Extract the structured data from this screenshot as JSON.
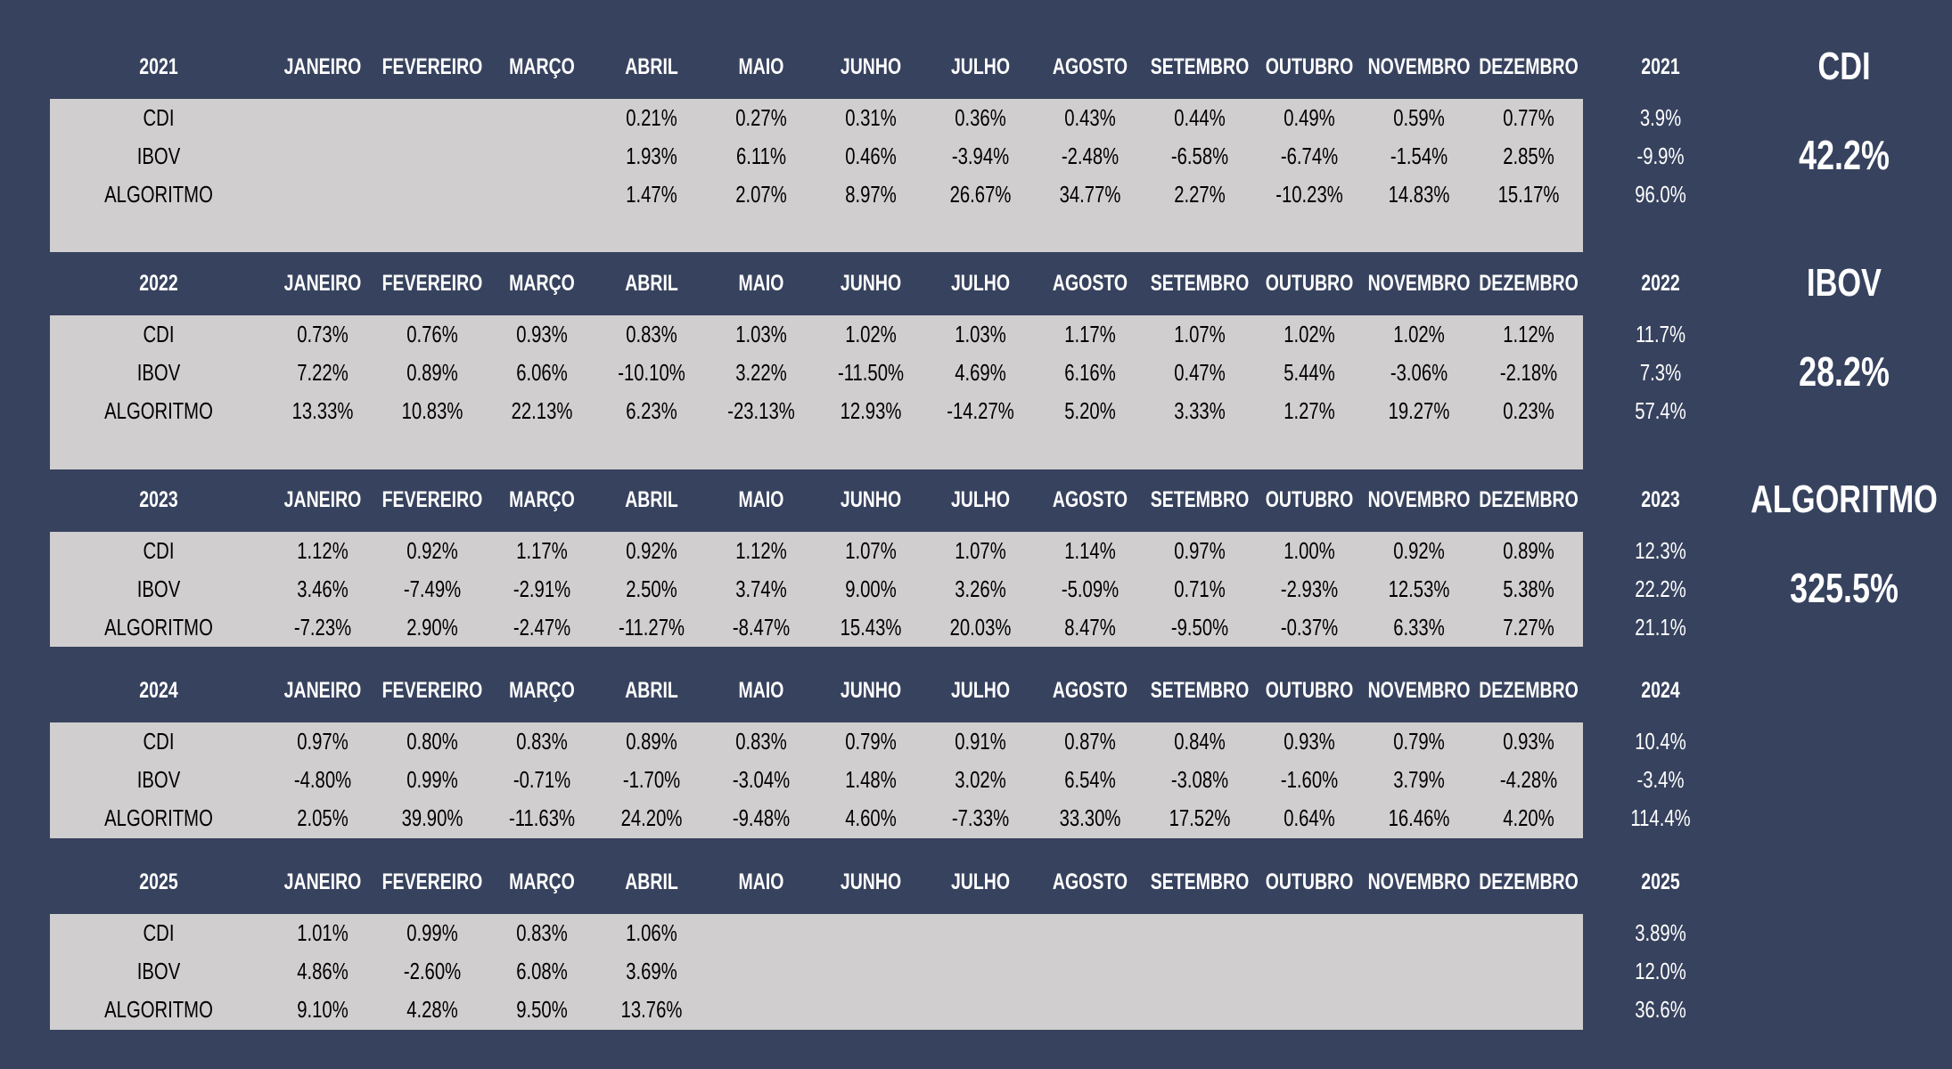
{
  "months": [
    "JANEIRO",
    "FEVEREIRO",
    "MARÇO",
    "ABRIL",
    "MAIO",
    "JUNHO",
    "JULHO",
    "AGOSTO",
    "SETEMBRO",
    "OUTUBRO",
    "NOVEMBRO",
    "DEZEMBRO"
  ],
  "row_labels": [
    "CDI",
    "IBOV",
    "ALGORITMO"
  ],
  "years": [
    {
      "year": "2021",
      "rows": [
        {
          "label": "CDI",
          "values": [
            "",
            "",
            "",
            "0.21%",
            "0.27%",
            "0.31%",
            "0.36%",
            "0.43%",
            "0.44%",
            "0.49%",
            "0.59%",
            "0.77%"
          ],
          "total": "3.9%"
        },
        {
          "label": "IBOV",
          "values": [
            "",
            "",
            "",
            "1.93%",
            "6.11%",
            "0.46%",
            "-3.94%",
            "-2.48%",
            "-6.58%",
            "-6.74%",
            "-1.54%",
            "2.85%"
          ],
          "total": "-9.9%"
        },
        {
          "label": "ALGORITMO",
          "values": [
            "",
            "",
            "",
            "1.47%",
            "2.07%",
            "8.97%",
            "26.67%",
            "34.77%",
            "2.27%",
            "-10.23%",
            "14.83%",
            "15.17%"
          ],
          "total": "96.0%"
        }
      ]
    },
    {
      "year": "2022",
      "rows": [
        {
          "label": "CDI",
          "values": [
            "0.73%",
            "0.76%",
            "0.93%",
            "0.83%",
            "1.03%",
            "1.02%",
            "1.03%",
            "1.17%",
            "1.07%",
            "1.02%",
            "1.02%",
            "1.12%"
          ],
          "total": "11.7%"
        },
        {
          "label": "IBOV",
          "values": [
            "7.22%",
            "0.89%",
            "6.06%",
            "-10.10%",
            "3.22%",
            "-11.50%",
            "4.69%",
            "6.16%",
            "0.47%",
            "5.44%",
            "-3.06%",
            "-2.18%"
          ],
          "total": "7.3%"
        },
        {
          "label": "ALGORITMO",
          "values": [
            "13.33%",
            "10.83%",
            "22.13%",
            "6.23%",
            "-23.13%",
            "12.93%",
            "-14.27%",
            "5.20%",
            "3.33%",
            "1.27%",
            "19.27%",
            "0.23%"
          ],
          "total": "57.4%"
        }
      ]
    },
    {
      "year": "2023",
      "rows": [
        {
          "label": "CDI",
          "values": [
            "1.12%",
            "0.92%",
            "1.17%",
            "0.92%",
            "1.12%",
            "1.07%",
            "1.07%",
            "1.14%",
            "0.97%",
            "1.00%",
            "0.92%",
            "0.89%"
          ],
          "total": "12.3%"
        },
        {
          "label": "IBOV",
          "values": [
            "3.46%",
            "-7.49%",
            "-2.91%",
            "2.50%",
            "3.74%",
            "9.00%",
            "3.26%",
            "-5.09%",
            "0.71%",
            "-2.93%",
            "12.53%",
            "5.38%"
          ],
          "total": "22.2%"
        },
        {
          "label": "ALGORITMO",
          "values": [
            "-7.23%",
            "2.90%",
            "-2.47%",
            "-11.27%",
            "-8.47%",
            "15.43%",
            "20.03%",
            "8.47%",
            "-9.50%",
            "-0.37%",
            "6.33%",
            "7.27%"
          ],
          "total": "21.1%"
        }
      ]
    },
    {
      "year": "2024",
      "rows": [
        {
          "label": "CDI",
          "values": [
            "0.97%",
            "0.80%",
            "0.83%",
            "0.89%",
            "0.83%",
            "0.79%",
            "0.91%",
            "0.87%",
            "0.84%",
            "0.93%",
            "0.79%",
            "0.93%"
          ],
          "total": "10.4%"
        },
        {
          "label": "IBOV",
          "values": [
            "-4.80%",
            "0.99%",
            "-0.71%",
            "-1.70%",
            "-3.04%",
            "1.48%",
            "3.02%",
            "6.54%",
            "-3.08%",
            "-1.60%",
            "3.79%",
            "-4.28%"
          ],
          "total": "-3.4%"
        },
        {
          "label": "ALGORITMO",
          "values": [
            "2.05%",
            "39.90%",
            "-11.63%",
            "24.20%",
            "-9.48%",
            "4.60%",
            "-7.33%",
            "33.30%",
            "17.52%",
            "0.64%",
            "16.46%",
            "4.20%"
          ],
          "total": "114.4%"
        }
      ]
    },
    {
      "year": "2025",
      "rows": [
        {
          "label": "CDI",
          "values": [
            "1.01%",
            "0.99%",
            "0.83%",
            "1.06%",
            "",
            "",
            "",
            "",
            "",
            "",
            "",
            ""
          ],
          "total": "3.89%"
        },
        {
          "label": "IBOV",
          "values": [
            "4.86%",
            "-2.60%",
            "6.08%",
            "3.69%",
            "",
            "",
            "",
            "",
            "",
            "",
            "",
            ""
          ],
          "total": "12.0%"
        },
        {
          "label": "ALGORITMO",
          "values": [
            "9.10%",
            "4.28%",
            "9.50%",
            "13.76%",
            "",
            "",
            "",
            "",
            "",
            "",
            "",
            ""
          ],
          "total": "36.6%"
        }
      ]
    }
  ],
  "summary": [
    {
      "label": "CDI",
      "value": "42.2%"
    },
    {
      "label": "IBOV",
      "value": "28.2%"
    },
    {
      "label": "ALGORITMO",
      "value": "325.5%"
    }
  ]
}
